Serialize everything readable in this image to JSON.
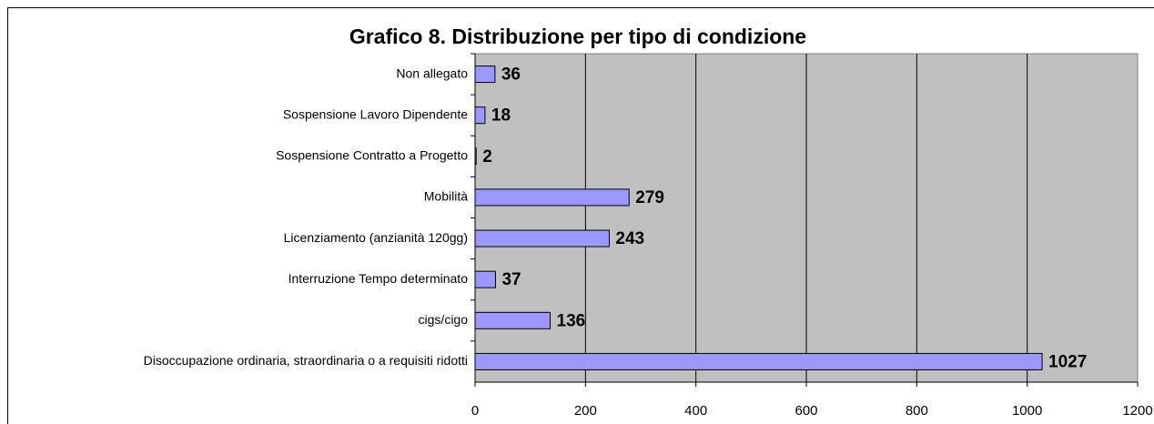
{
  "chart_data": {
    "type": "bar",
    "orientation": "horizontal",
    "title": "Grafico 8. Distribuzione per tipo di condizione",
    "categories": [
      "Non allegato",
      "Sospensione Lavoro Dipendente",
      "Sospensione Contratto a Progetto",
      "Mobilità",
      "Licenziamento (anzianità 120gg)",
      "Interruzione Tempo determinato",
      "cigs/cigo",
      "Disoccupazione ordinaria, straordinaria o a requisiti ridotti"
    ],
    "values": [
      36,
      18,
      2,
      279,
      243,
      37,
      136,
      1027
    ],
    "color": "#9999ff",
    "xlim": [
      0,
      1200
    ],
    "xticks": [
      0,
      200,
      400,
      600,
      800,
      1000,
      1200
    ],
    "grid": true
  }
}
